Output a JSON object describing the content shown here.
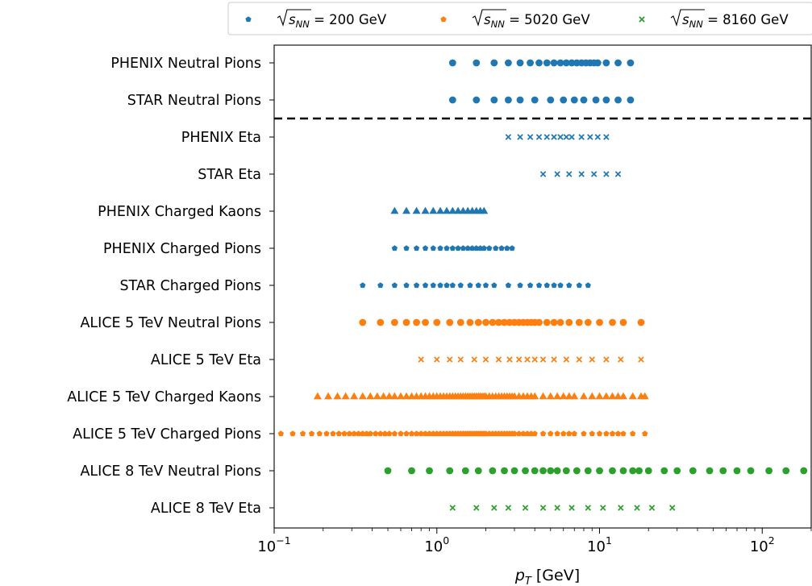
{
  "chart_data": {
    "type": "scatter",
    "xscale": "log",
    "xlim": [
      0.1,
      200
    ],
    "xlabel": "p_T [GeV]",
    "xlabel_parts": {
      "main": "p",
      "sub": "T",
      "unit": " [GeV]"
    },
    "xticks": [
      {
        "value": 0.1,
        "base": "10",
        "exp": "−1"
      },
      {
        "value": 1,
        "base": "10",
        "exp": "0"
      },
      {
        "value": 10,
        "base": "10",
        "exp": "1"
      },
      {
        "value": 100,
        "base": "10",
        "exp": "2"
      }
    ],
    "categories": [
      "PHENIX Neutral Pions",
      "STAR Neutral Pions",
      "PHENIX Eta",
      "STAR Eta",
      "PHENIX Charged Kaons",
      "PHENIX Charged Pions",
      "STAR Charged Pions",
      "ALICE 5 TeV Neutral Pions",
      "ALICE 5 TeV Eta",
      "ALICE 5 TeV Charged Kaons",
      "ALICE 5 TeV Charged Pions",
      "ALICE 8 TeV Neutral Pions",
      "ALICE 8 TeV Eta"
    ],
    "legend": {
      "position": "top-right",
      "entries": [
        {
          "label_prefix": "√",
          "label_var": "s",
          "label_sub": "NN",
          "label_value": " = 200 GeV",
          "color": "#1f77b4",
          "marker": "pentagon"
        },
        {
          "label_prefix": "√",
          "label_var": "s",
          "label_sub": "NN",
          "label_value": " = 5020 GeV",
          "color": "#ff7f0e",
          "marker": "pentagon"
        },
        {
          "label_prefix": "√",
          "label_var": "s",
          "label_sub": "NN",
          "label_value": " = 8160 GeV",
          "color": "#2ca02c",
          "marker": "x"
        }
      ]
    },
    "separator": {
      "style": "dashed",
      "between": [
        "STAR Neutral Pions",
        "PHENIX Eta"
      ]
    },
    "grid": false,
    "series": [
      {
        "category": "PHENIX Neutral Pions",
        "energy": "200 GeV",
        "marker": "circle",
        "color": "#1f77b4",
        "x": [
          1.25,
          1.75,
          2.25,
          2.75,
          3.25,
          3.75,
          4.25,
          4.75,
          5.25,
          5.75,
          6.25,
          6.75,
          7.25,
          7.75,
          8.25,
          8.75,
          9.25,
          9.75,
          11,
          13,
          15.5
        ]
      },
      {
        "category": "STAR Neutral Pions",
        "energy": "200 GeV",
        "marker": "circle",
        "color": "#1f77b4",
        "x": [
          1.25,
          1.75,
          2.25,
          2.75,
          3.25,
          4.0,
          5.0,
          6.0,
          7.0,
          8.0,
          9.5,
          11.0,
          13.0,
          15.5
        ]
      },
      {
        "category": "PHENIX Eta",
        "energy": "200 GeV",
        "marker": "x",
        "color": "#1f77b4",
        "x": [
          2.75,
          3.25,
          3.75,
          4.25,
          4.75,
          5.25,
          5.75,
          6.25,
          6.75,
          7.75,
          8.75,
          9.75,
          11.0
        ]
      },
      {
        "category": "STAR Eta",
        "energy": "200 GeV",
        "marker": "x",
        "color": "#1f77b4",
        "x": [
          4.5,
          5.5,
          6.5,
          7.75,
          9.25,
          11.0,
          13.0
        ]
      },
      {
        "category": "PHENIX Charged Kaons",
        "energy": "200 GeV",
        "marker": "triangle",
        "color": "#1f77b4",
        "x": [
          0.55,
          0.65,
          0.75,
          0.85,
          0.95,
          1.05,
          1.15,
          1.25,
          1.35,
          1.45,
          1.55,
          1.65,
          1.75,
          1.85,
          1.95
        ]
      },
      {
        "category": "PHENIX Charged Pions",
        "energy": "200 GeV",
        "marker": "pentagon",
        "color": "#1f77b4",
        "x": [
          0.55,
          0.65,
          0.75,
          0.85,
          0.95,
          1.05,
          1.15,
          1.25,
          1.35,
          1.45,
          1.55,
          1.65,
          1.75,
          1.85,
          1.95,
          2.1,
          2.3,
          2.5,
          2.7,
          2.9
        ]
      },
      {
        "category": "STAR Charged Pions",
        "energy": "200 GeV",
        "marker": "pentagon",
        "color": "#1f77b4",
        "x": [
          0.35,
          0.45,
          0.55,
          0.65,
          0.75,
          0.85,
          0.95,
          1.05,
          1.15,
          1.25,
          1.4,
          1.6,
          1.8,
          2.0,
          2.25,
          2.75,
          3.25,
          3.75,
          4.25,
          4.75,
          5.25,
          5.75,
          6.5,
          7.5,
          8.5
        ]
      },
      {
        "category": "ALICE 5 TeV Neutral Pions",
        "energy": "5020 GeV",
        "marker": "circle",
        "color": "#ff7f0e",
        "x": [
          0.35,
          0.45,
          0.55,
          0.65,
          0.75,
          0.85,
          1.0,
          1.2,
          1.4,
          1.6,
          1.8,
          2.0,
          2.2,
          2.4,
          2.6,
          2.8,
          3.0,
          3.2,
          3.4,
          3.6,
          3.8,
          4.0,
          4.25,
          4.75,
          5.25,
          5.75,
          6.5,
          7.5,
          8.5,
          10.0,
          12.0,
          14.0,
          18.0
        ]
      },
      {
        "category": "ALICE 5 TeV Eta",
        "energy": "5020 GeV",
        "marker": "x",
        "color": "#ff7f0e",
        "x": [
          0.8,
          1.0,
          1.2,
          1.4,
          1.7,
          2.0,
          2.4,
          2.8,
          3.2,
          3.6,
          4.0,
          4.5,
          5.25,
          6.25,
          7.5,
          9.0,
          11.0,
          13.5,
          18.0
        ]
      },
      {
        "category": "ALICE 5 TeV Charged Kaons",
        "energy": "5020 GeV",
        "marker": "triangle",
        "color": "#ff7f0e",
        "x": [
          0.185,
          0.215,
          0.245,
          0.275,
          0.31,
          0.35,
          0.39,
          0.43,
          0.47,
          0.51,
          0.55,
          0.6,
          0.65,
          0.7,
          0.75,
          0.8,
          0.85,
          0.9,
          0.95,
          1.0,
          1.05,
          1.1,
          1.15,
          1.2,
          1.25,
          1.3,
          1.35,
          1.4,
          1.45,
          1.5,
          1.55,
          1.6,
          1.65,
          1.7,
          1.75,
          1.8,
          1.85,
          1.9,
          1.95,
          2.0,
          2.1,
          2.2,
          2.3,
          2.4,
          2.5,
          2.6,
          2.7,
          2.8,
          2.9,
          3.0,
          3.2,
          3.4,
          3.6,
          3.8,
          4.0,
          4.5,
          5.0,
          5.5,
          6.0,
          6.5,
          7.0,
          8.0,
          9.0,
          10.0,
          11.0,
          12.0,
          13.0,
          14.0,
          16.0,
          18.0,
          19.0
        ]
      },
      {
        "category": "ALICE 5 TeV Charged Pions",
        "energy": "5020 GeV",
        "marker": "pentagon",
        "color": "#ff7f0e",
        "x": [
          0.11,
          0.13,
          0.15,
          0.17,
          0.19,
          0.21,
          0.23,
          0.25,
          0.27,
          0.29,
          0.31,
          0.33,
          0.35,
          0.37,
          0.39,
          0.42,
          0.45,
          0.48,
          0.51,
          0.55,
          0.6,
          0.65,
          0.7,
          0.75,
          0.8,
          0.85,
          0.9,
          0.95,
          1.0,
          1.05,
          1.1,
          1.15,
          1.2,
          1.25,
          1.3,
          1.35,
          1.4,
          1.45,
          1.5,
          1.55,
          1.6,
          1.65,
          1.7,
          1.75,
          1.8,
          1.85,
          1.9,
          1.95,
          2.0,
          2.1,
          2.2,
          2.3,
          2.4,
          2.5,
          2.6,
          2.7,
          2.8,
          2.9,
          3.0,
          3.2,
          3.4,
          3.6,
          3.8,
          4.0,
          4.5,
          5.0,
          5.5,
          6.0,
          6.5,
          7.0,
          8.0,
          9.0,
          10.0,
          11.0,
          12.0,
          13.0,
          14.0,
          16.0,
          19.0
        ]
      },
      {
        "category": "ALICE 8 TeV Neutral Pions",
        "energy": "8160 GeV",
        "marker": "circle",
        "color": "#2ca02c",
        "x": [
          0.5,
          0.7,
          0.9,
          1.2,
          1.5,
          1.8,
          2.2,
          2.6,
          3.0,
          3.5,
          4.0,
          4.5,
          5.0,
          5.5,
          6.25,
          7.25,
          8.5,
          10.0,
          12.0,
          14.0,
          16.0,
          17.5,
          20.0,
          25.0,
          30.0,
          37.5,
          47.5,
          57.5,
          70.0,
          85.0,
          110.0,
          140.0,
          180.0
        ]
      },
      {
        "category": "ALICE 8 TeV Eta",
        "energy": "8160 GeV",
        "marker": "x",
        "color": "#2ca02c",
        "x": [
          1.25,
          1.75,
          2.25,
          2.75,
          3.5,
          4.5,
          5.5,
          6.75,
          8.5,
          10.5,
          13.5,
          17.0,
          21.0,
          28.0
        ]
      }
    ]
  }
}
